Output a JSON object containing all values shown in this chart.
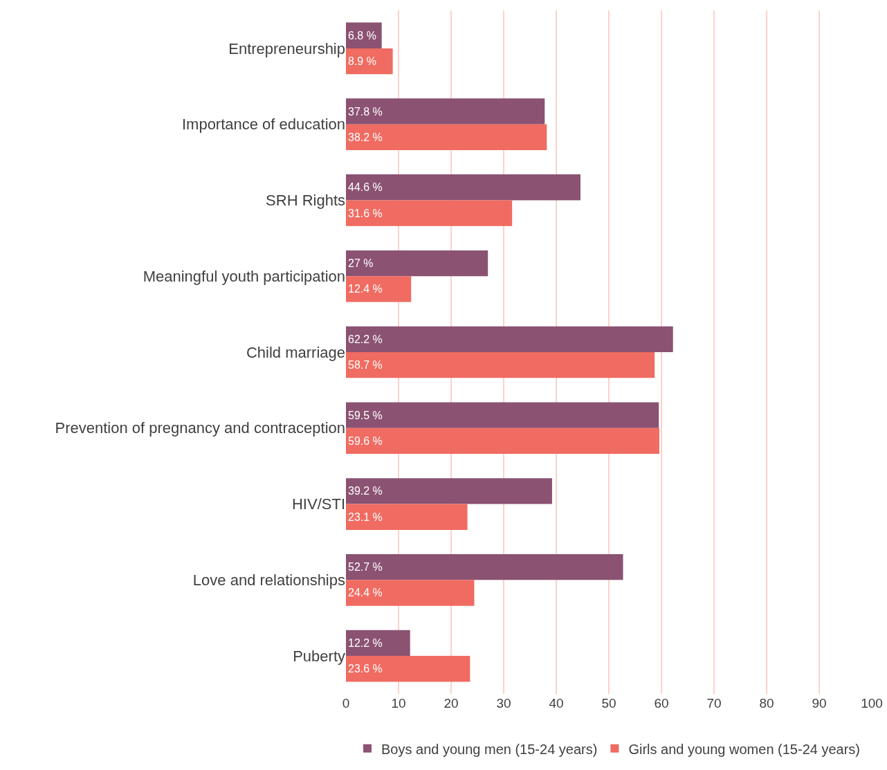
{
  "chart_data": {
    "type": "bar",
    "orientation": "horizontal",
    "categories": [
      "Entrepreneurship",
      "Importance of education",
      "SRH Rights",
      "Meaningful youth participation",
      "Child marriage",
      "Prevention of pregnancy and contraception",
      "HIV/STI",
      "Love and relationships",
      "Puberty"
    ],
    "series": [
      {
        "name": "Boys and young men (15-24 years)",
        "color": "#8b5272",
        "values": [
          6.8,
          37.8,
          44.6,
          27,
          62.2,
          59.5,
          39.2,
          52.7,
          12.2
        ],
        "value_labels": [
          "6.8 %",
          "37.8 %",
          "44.6 %",
          "27 %",
          "62.2 %",
          "59.5 %",
          "39.2 %",
          "52.7 %",
          "12.2 %"
        ]
      },
      {
        "name": "Girls and young women (15-24 years)",
        "color": "#f06b61",
        "values": [
          8.9,
          38.2,
          31.6,
          12.4,
          58.7,
          59.6,
          23.1,
          24.4,
          23.6
        ],
        "value_labels": [
          "8.9 %",
          "38.2 %",
          "31.6 %",
          "12.4 %",
          "58.7 %",
          "59.6 %",
          "23.1 %",
          "24.4 %",
          "23.6 %"
        ]
      }
    ],
    "xlim": [
      0,
      100
    ],
    "xticks": [
      0,
      10,
      20,
      30,
      40,
      50,
      60,
      70,
      80,
      90,
      100
    ],
    "grid": "x",
    "legend": "bottom"
  }
}
